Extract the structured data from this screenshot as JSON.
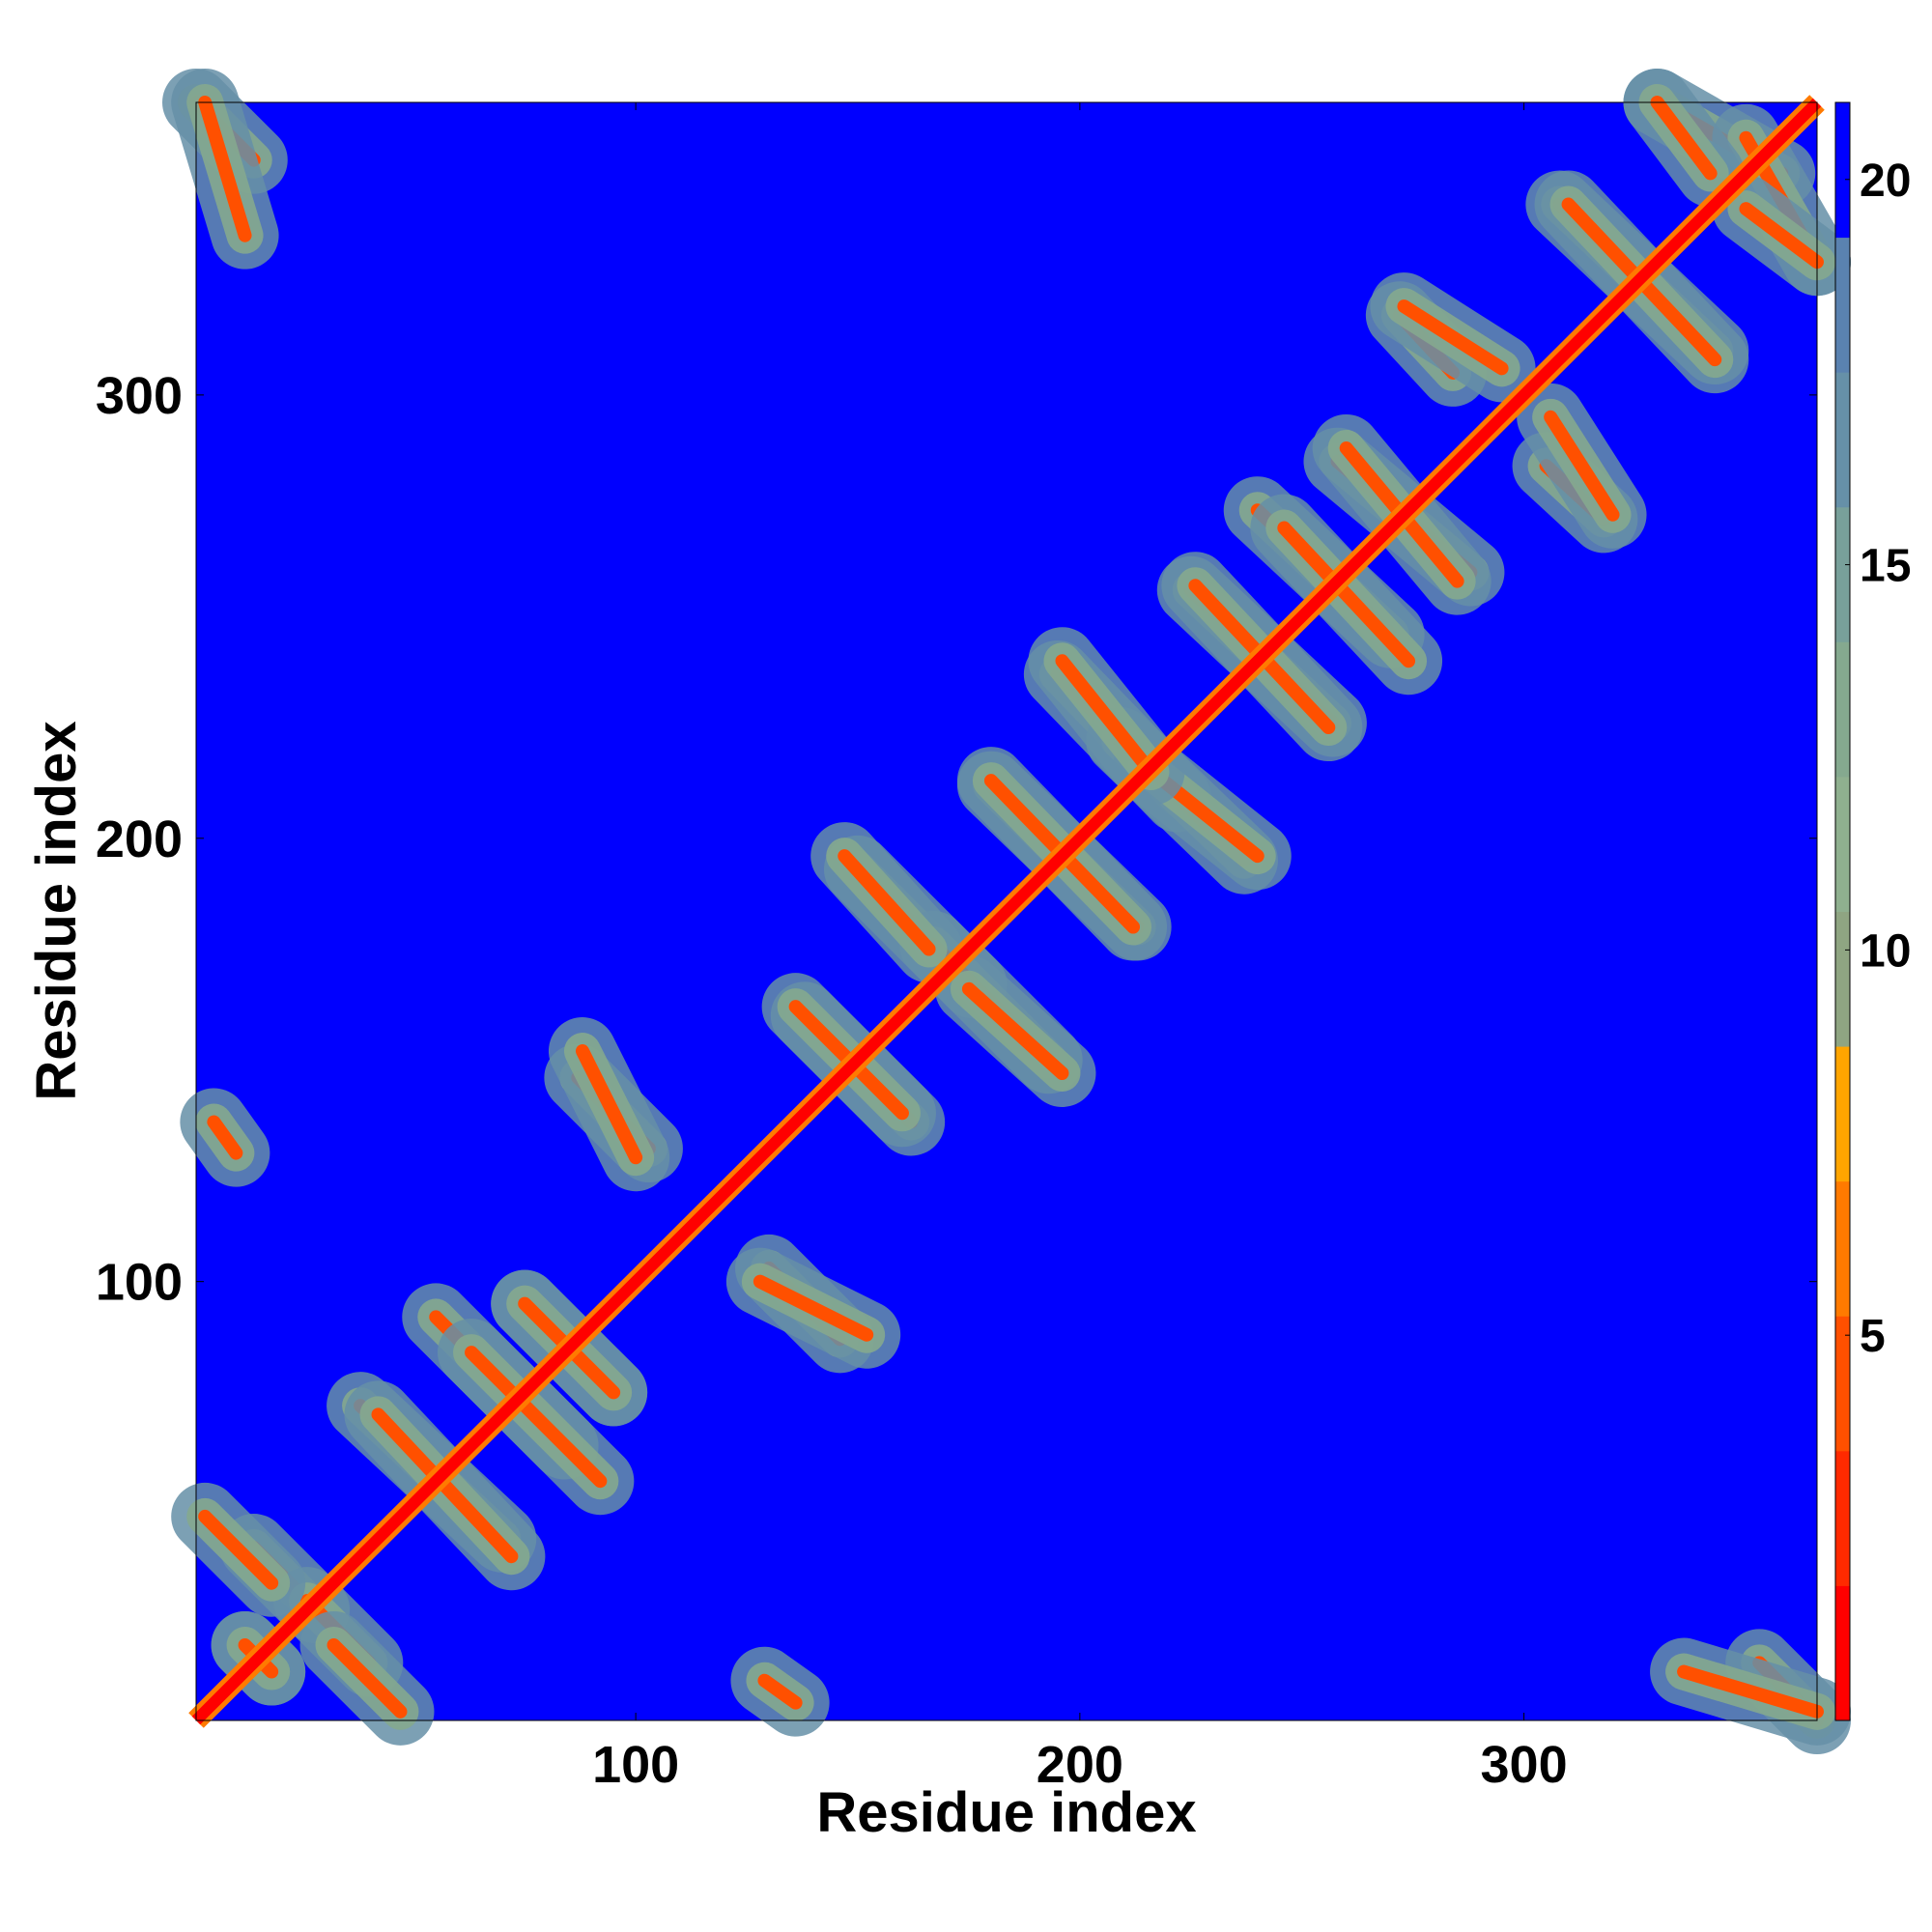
{
  "chart_data": {
    "type": "heatmap",
    "title": "",
    "xlabel": "Residue index",
    "ylabel": "Residue index",
    "xlim": [
      1,
      366
    ],
    "ylim": [
      1,
      366
    ],
    "x_ticks": [
      100,
      200,
      300
    ],
    "y_ticks": [
      100,
      200,
      300
    ],
    "colorbar": {
      "min": 0,
      "max": 21,
      "ticks": [
        5,
        10,
        15,
        20
      ],
      "colors": [
        "#ff0000",
        "#ff2a00",
        "#ff5000",
        "#ff7a00",
        "#ffa500",
        "#8fa582",
        "#8fb08f",
        "#85a98f",
        "#78a09a",
        "#6690a8",
        "#5a82b0",
        "#0000ff"
      ]
    },
    "background_value": 21,
    "diagonal_value": 1.5,
    "features": [
      {
        "x": [
          1,
          14
        ],
        "y": [
          366,
          353
        ],
        "value": 5
      },
      {
        "x": [
          14,
          28
        ],
        "y": [
          40,
          26
        ],
        "value": 5
      },
      {
        "x": [
          12,
          18
        ],
        "y": [
          18,
          12
        ],
        "value": 5
      },
      {
        "x": [
          32,
          47
        ],
        "y": [
          18,
          3
        ],
        "value": 5
      },
      {
        "x": [
          38,
          70
        ],
        "y": [
          72,
          42
        ],
        "value": 4
      },
      {
        "x": [
          55,
          84
        ],
        "y": [
          92,
          63
        ],
        "value": 4
      },
      {
        "x": [
          75,
          95
        ],
        "y": [
          95,
          75
        ],
        "value": 4
      },
      {
        "x": [
          87,
          103
        ],
        "y": [
          146,
          130
        ],
        "value": 5
      },
      {
        "x": [
          128,
          152
        ],
        "y": [
          100,
          88
        ],
        "value": 5
      },
      {
        "x": [
          138,
          162
        ],
        "y": [
          160,
          136
        ],
        "value": 4
      },
      {
        "x": [
          150,
          176
        ],
        "y": [
          193,
          167
        ],
        "value": 4
      },
      {
        "x": [
          175,
          196
        ],
        "y": [
          166,
          147
        ],
        "value": 4
      },
      {
        "x": [
          180,
          213
        ],
        "y": [
          212,
          180
        ],
        "value": 4
      },
      {
        "x": [
          195,
          222
        ],
        "y": [
          237,
          209
        ],
        "value": 4
      },
      {
        "x": [
          215,
          240
        ],
        "y": [
          216,
          196
        ],
        "value": 4
      },
      {
        "x": [
          225,
          257
        ],
        "y": [
          256,
          226
        ],
        "value": 4
      },
      {
        "x": [
          240,
          270
        ],
        "y": [
          274,
          246
        ],
        "value": 4
      },
      {
        "x": [
          258,
          288
        ],
        "y": [
          285,
          260
        ],
        "value": 4
      },
      {
        "x": [
          305,
          318
        ],
        "y": [
          284,
          272
        ],
        "value": 5
      },
      {
        "x": [
          273,
          295
        ],
        "y": [
          320,
          306
        ],
        "value": 5
      },
      {
        "x": [
          308,
          343
        ],
        "y": [
          343,
          310
        ],
        "value": 4
      },
      {
        "x": [
          330,
          358
        ],
        "y": [
          366,
          350
        ],
        "value": 5
      },
      {
        "x": [
          350,
          366
        ],
        "y": [
          342,
          330
        ],
        "value": 5
      },
      {
        "x": [
          336,
          366
        ],
        "y": [
          12,
          3
        ],
        "value": 5
      },
      {
        "x": [
          129,
          136
        ],
        "y": [
          10,
          5
        ],
        "value": 5
      }
    ]
  }
}
